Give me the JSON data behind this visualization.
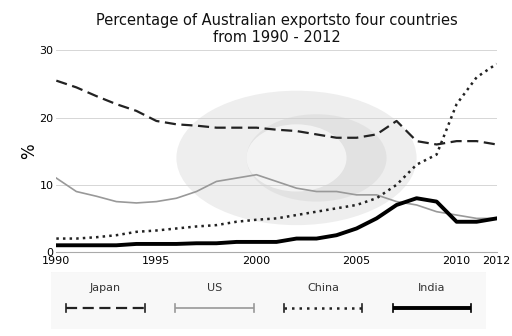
{
  "title": "Percentage of Australian exportsto four countries\nfrom 1990 - 2012",
  "ylabel": "%",
  "ylim": [
    0,
    30
  ],
  "yticks": [
    0,
    10,
    20,
    30
  ],
  "xlim": [
    1990,
    2012
  ],
  "xticks": [
    1990,
    1995,
    2000,
    2005,
    2010,
    2012
  ],
  "japan_x": [
    1990,
    1991,
    1992,
    1993,
    1994,
    1995,
    1996,
    1997,
    1998,
    1999,
    2000,
    2001,
    2002,
    2003,
    2004,
    2005,
    2006,
    2007,
    2008,
    2009,
    2010,
    2011,
    2012
  ],
  "japan_y": [
    25.5,
    24.5,
    23.2,
    22.0,
    21.0,
    19.5,
    19.0,
    18.8,
    18.5,
    18.5,
    18.5,
    18.2,
    18.0,
    17.5,
    17.0,
    17.0,
    17.5,
    19.5,
    16.5,
    16.0,
    16.5,
    16.5,
    16.0
  ],
  "us_x": [
    1990,
    1991,
    1992,
    1993,
    1994,
    1995,
    1996,
    1997,
    1998,
    1999,
    2000,
    2001,
    2002,
    2003,
    2004,
    2005,
    2006,
    2007,
    2008,
    2009,
    2010,
    2011,
    2012
  ],
  "us_y": [
    11.0,
    9.0,
    8.3,
    7.5,
    7.3,
    7.5,
    8.0,
    9.0,
    10.5,
    11.0,
    11.5,
    10.5,
    9.5,
    9.0,
    9.0,
    8.5,
    8.5,
    7.5,
    7.0,
    6.0,
    5.5,
    5.0,
    5.0
  ],
  "china_x": [
    1990,
    1991,
    1992,
    1993,
    1994,
    1995,
    1996,
    1997,
    1998,
    1999,
    2000,
    2001,
    2002,
    2003,
    2004,
    2005,
    2006,
    2007,
    2008,
    2009,
    2010,
    2011,
    2012
  ],
  "china_y": [
    2.0,
    2.0,
    2.2,
    2.5,
    3.0,
    3.2,
    3.5,
    3.8,
    4.0,
    4.5,
    4.8,
    5.0,
    5.5,
    6.0,
    6.5,
    7.0,
    8.0,
    10.0,
    13.0,
    14.5,
    22.0,
    26.0,
    28.0
  ],
  "india_x": [
    1990,
    1991,
    1992,
    1993,
    1994,
    1995,
    1996,
    1997,
    1998,
    1999,
    2000,
    2001,
    2002,
    2003,
    2004,
    2005,
    2006,
    2007,
    2008,
    2009,
    2010,
    2011,
    2012
  ],
  "india_y": [
    1.0,
    1.0,
    1.0,
    1.0,
    1.2,
    1.2,
    1.2,
    1.3,
    1.3,
    1.5,
    1.5,
    1.5,
    2.0,
    2.0,
    2.5,
    3.5,
    5.0,
    7.0,
    8.0,
    7.5,
    4.5,
    4.5,
    5.0
  ],
  "japan_color": "#222222",
  "japan_linestyle": "--",
  "japan_linewidth": 1.6,
  "japan_dashes": [
    5,
    2.5
  ],
  "us_color": "#999999",
  "us_linestyle": "-",
  "us_linewidth": 1.2,
  "china_color": "#222222",
  "china_linestyle": ":",
  "china_linewidth": 1.8,
  "india_color": "#000000",
  "india_linestyle": "-",
  "india_linewidth": 2.8,
  "legend_labels": [
    "Japan",
    "US",
    "China",
    "India"
  ],
  "legend_linestyles": [
    "--",
    "-",
    ":",
    "-"
  ],
  "legend_linewidths": [
    1.6,
    1.2,
    1.8,
    2.8
  ],
  "legend_colors": [
    "#222222",
    "#999999",
    "#222222",
    "#000000"
  ],
  "legend_dashes": [
    [
      5,
      2.5
    ],
    null,
    [
      1,
      2
    ],
    null
  ]
}
